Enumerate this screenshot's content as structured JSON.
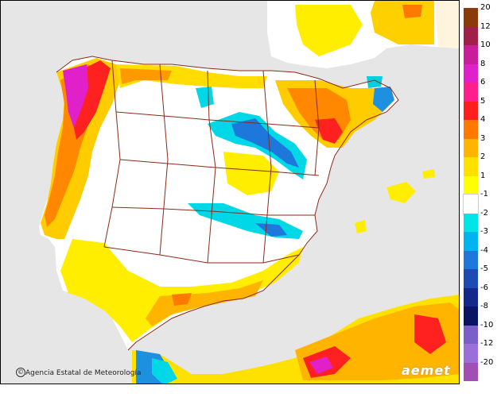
{
  "map": {
    "sea_color": "#e6e6e6",
    "land_neutral_color": "#ffffff",
    "border_color": "#8b2a1a"
  },
  "legend": {
    "entries": [
      {
        "label": "20",
        "color": "#8b3a0a"
      },
      {
        "label": "12",
        "color": "#a0204a"
      },
      {
        "label": "10",
        "color": "#c81e9a"
      },
      {
        "label": "8",
        "color": "#e020c8"
      },
      {
        "label": "6",
        "color": "#ff1e8c"
      },
      {
        "label": "5",
        "color": "#ff1e1e"
      },
      {
        "label": "4",
        "color": "#ff7800"
      },
      {
        "label": "3",
        "color": "#ffb400"
      },
      {
        "label": "2",
        "color": "#ffe100"
      },
      {
        "label": "1",
        "color": "#ffff00"
      },
      {
        "label": "-1",
        "color": "#ffffff"
      },
      {
        "label": "-2",
        "color": "#00e6e6"
      },
      {
        "label": "-3",
        "color": "#00b4f0"
      },
      {
        "label": "-4",
        "color": "#1e78dc"
      },
      {
        "label": "-5",
        "color": "#1e4ab4"
      },
      {
        "label": "-6",
        "color": "#14288c"
      },
      {
        "label": "-8",
        "color": "#0a1464"
      },
      {
        "label": "-10",
        "color": "#7b5fc8"
      },
      {
        "label": "-12",
        "color": "#9b6fd8"
      },
      {
        "label": "-20",
        "color": "#a050b4"
      }
    ]
  },
  "footer": {
    "credit_text": "Agencia Estatal de Meteorología",
    "credit_icon": "copyright-icon",
    "logo_text": "aemet"
  }
}
